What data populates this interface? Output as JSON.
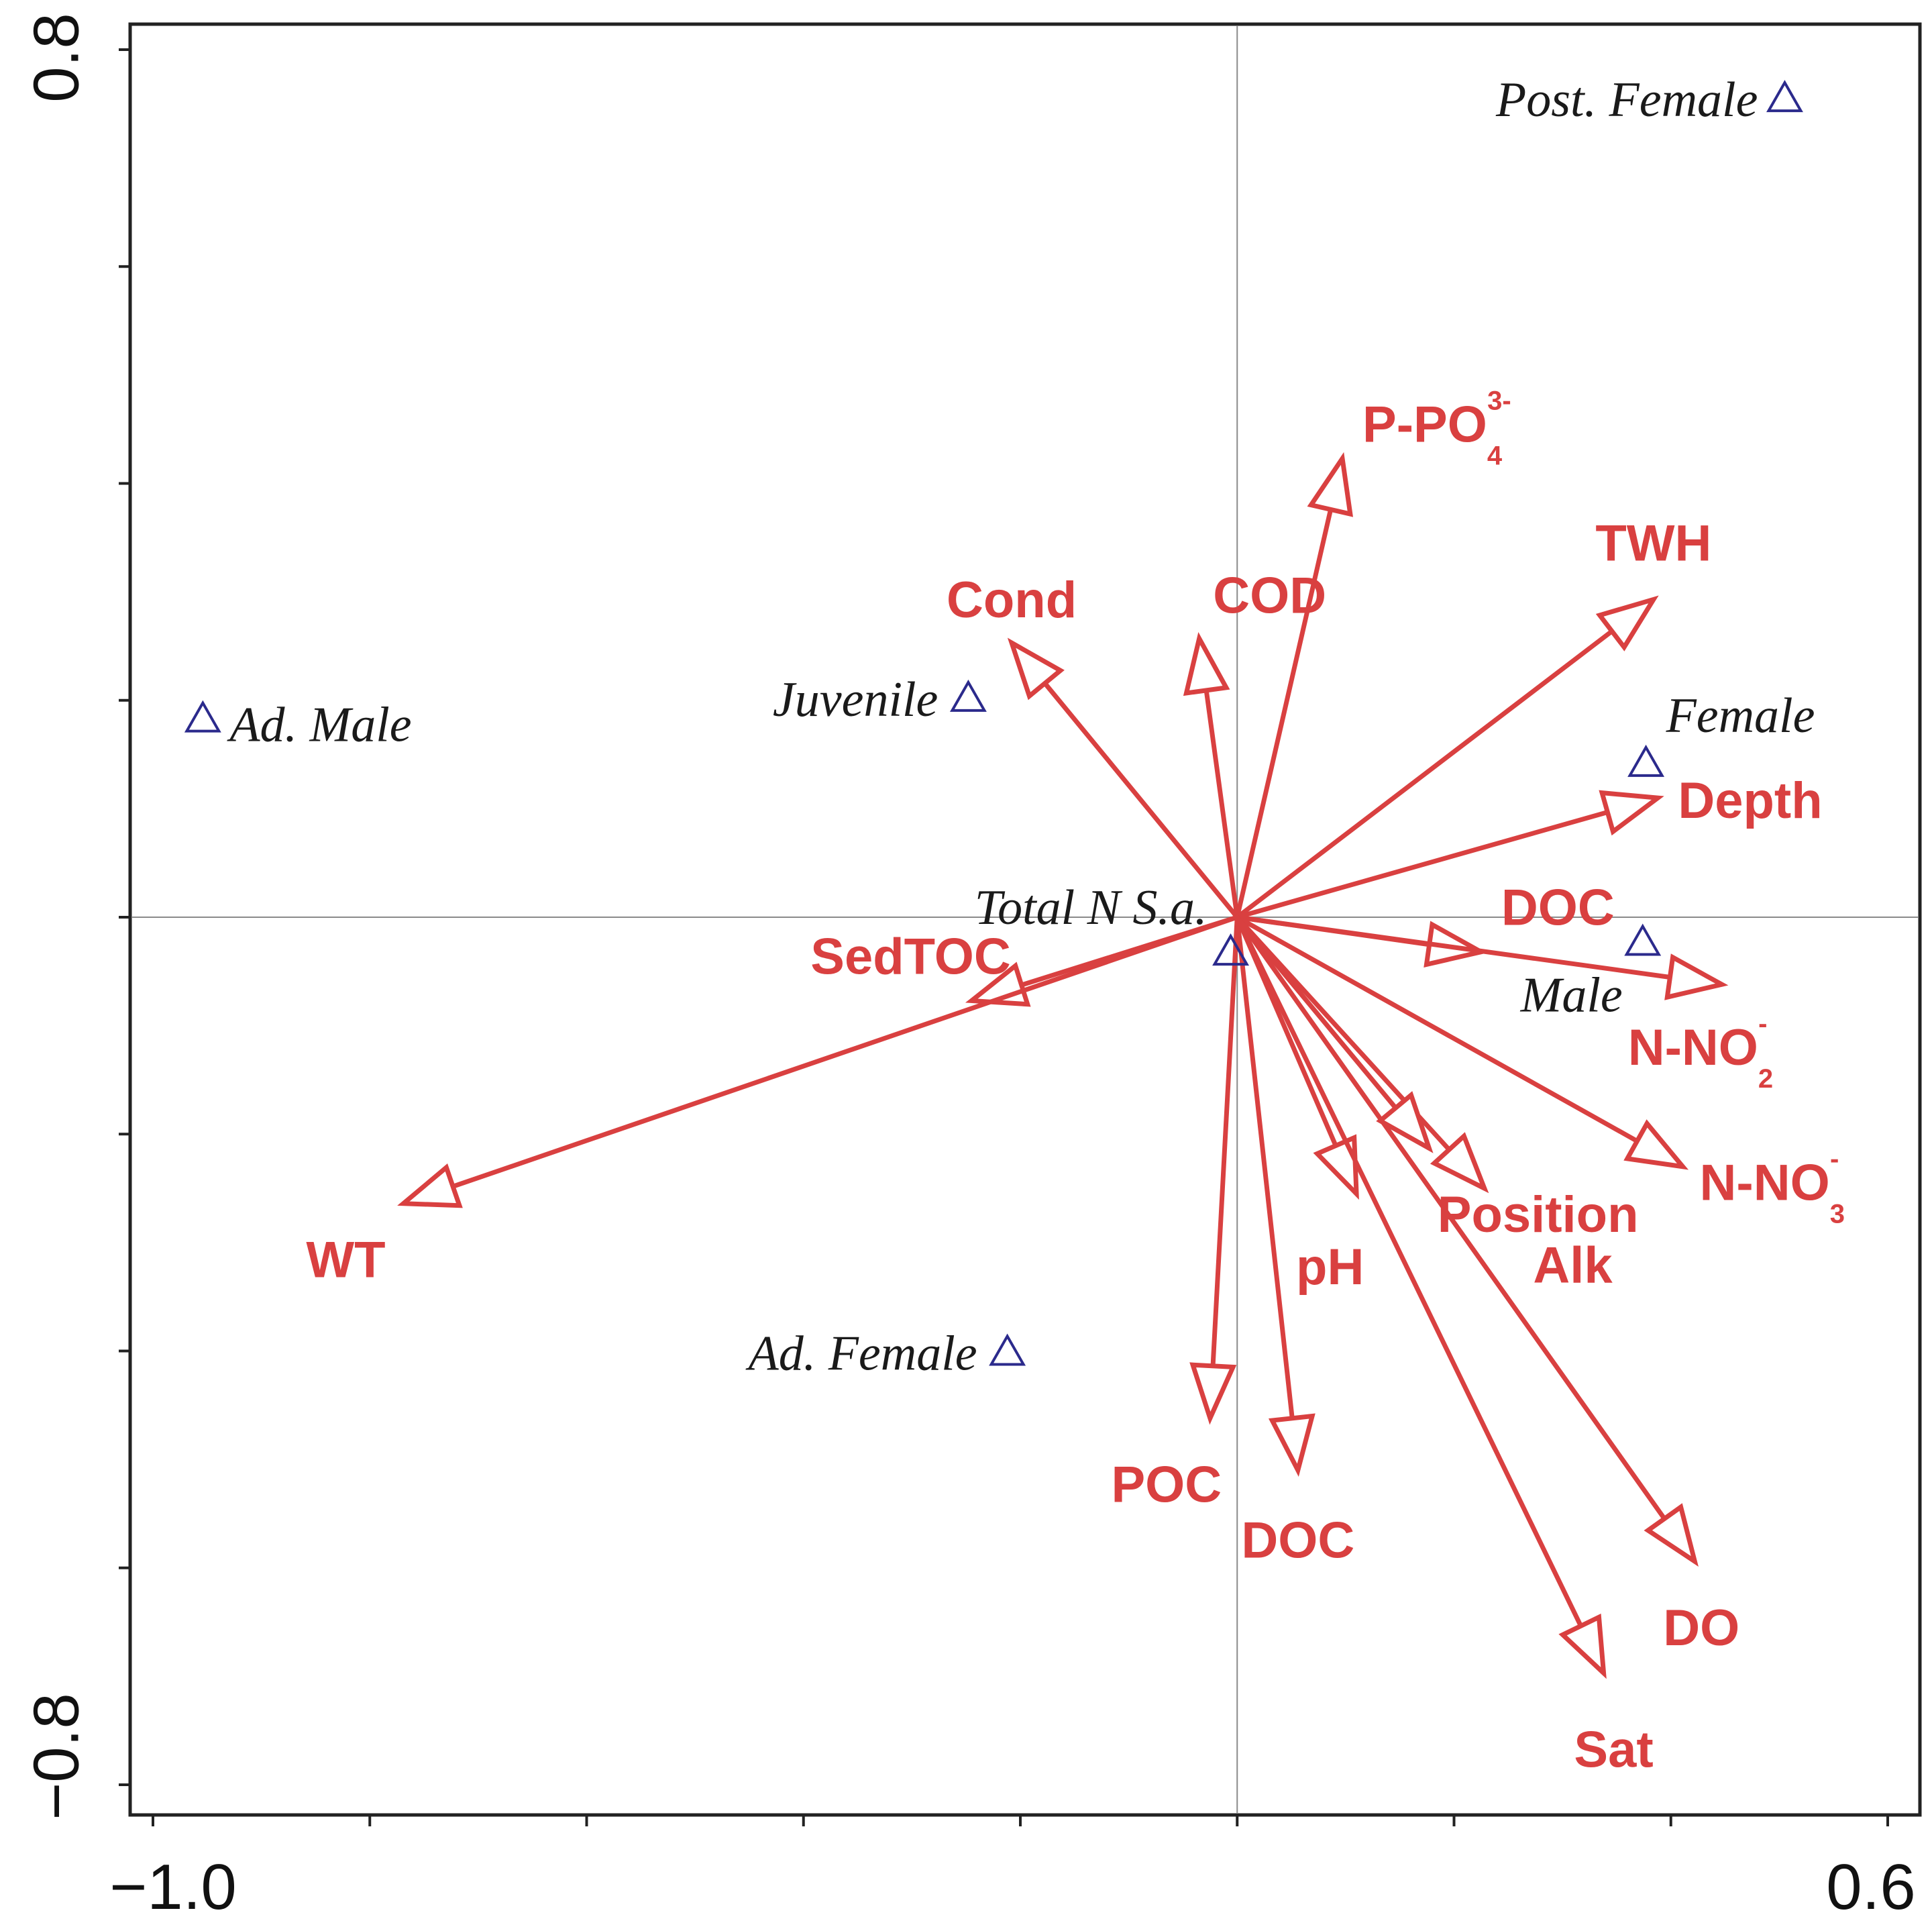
{
  "chart_data": {
    "type": "scatter",
    "subtype": "ordination-biplot",
    "title": "",
    "xlabel": "",
    "ylabel": "",
    "xlim": [
      -1.0,
      0.6
    ],
    "ylim": [
      -0.8,
      0.8
    ],
    "x_tick_labels": [
      {
        "value": -1.0,
        "label": "−1.0"
      },
      {
        "value": 0.6,
        "label": "0.6"
      }
    ],
    "y_tick_labels": [
      {
        "value": 0.8,
        "label": "0.8"
      },
      {
        "value": -0.8,
        "label": "−0.8"
      }
    ],
    "x_minor_ticks": [
      -1.0,
      -0.8,
      -0.6,
      -0.4,
      -0.2,
      0.0,
      0.2,
      0.4,
      0.6
    ],
    "y_minor_ticks": [
      0.8,
      0.6,
      0.4,
      0.2,
      0.0,
      -0.2,
      -0.4,
      -0.6,
      -0.8
    ],
    "colors": {
      "arrow": "#d94040",
      "species": "#2b2a8c",
      "axis": "#222222",
      "gridline": "#8a8a8a"
    },
    "environmental_vectors": [
      {
        "label": "P-PO",
        "sub": "4",
        "sup": "3-",
        "x": 0.097,
        "y": 0.423
      },
      {
        "label": "TWH",
        "x": 0.384,
        "y": 0.293
      },
      {
        "label": "Cond",
        "x": -0.208,
        "y": 0.253
      },
      {
        "label": "COD",
        "x": -0.035,
        "y": 0.257
      },
      {
        "label": "Depth",
        "x": 0.388,
        "y": 0.11
      },
      {
        "label": "DOC",
        "x": 0.225,
        "y": -0.032
      },
      {
        "label": "N-NO",
        "sub": "2",
        "sup": "-",
        "x": 0.447,
        "y": -0.062
      },
      {
        "label": "N-NO",
        "sub": "3",
        "sup": "-",
        "x": 0.411,
        "y": -0.23
      },
      {
        "label": "Position",
        "x": 0.228,
        "y": -0.25
      },
      {
        "label": "Alk",
        "x": 0.177,
        "y": -0.213
      },
      {
        "label": "pH",
        "x": 0.11,
        "y": -0.255
      },
      {
        "label": "SedTOC",
        "x": -0.245,
        "y": -0.077
      },
      {
        "label": "WT",
        "x": -0.769,
        "y": -0.264
      },
      {
        "label": "POC",
        "x": -0.025,
        "y": -0.462
      },
      {
        "label": "DOC",
        "x": 0.056,
        "y": -0.51
      },
      {
        "label": "DO",
        "x": 0.422,
        "y": -0.594
      },
      {
        "label": "Sat",
        "x": 0.338,
        "y": -0.697
      }
    ],
    "species_points": [
      {
        "label": "Post. Female",
        "x": 0.505,
        "y": 0.756
      },
      {
        "label": "Ad. Male",
        "x": -0.954,
        "y": 0.184
      },
      {
        "label": "Juvenile",
        "x": -0.248,
        "y": 0.203
      },
      {
        "label": "Female",
        "x": 0.377,
        "y": 0.143
      },
      {
        "label": "Male",
        "x": 0.374,
        "y": -0.022
      },
      {
        "label": "Total N S.a.",
        "x": -0.006,
        "y": -0.031
      },
      {
        "label": "Ad. Female",
        "x": -0.212,
        "y": -0.4
      }
    ]
  }
}
